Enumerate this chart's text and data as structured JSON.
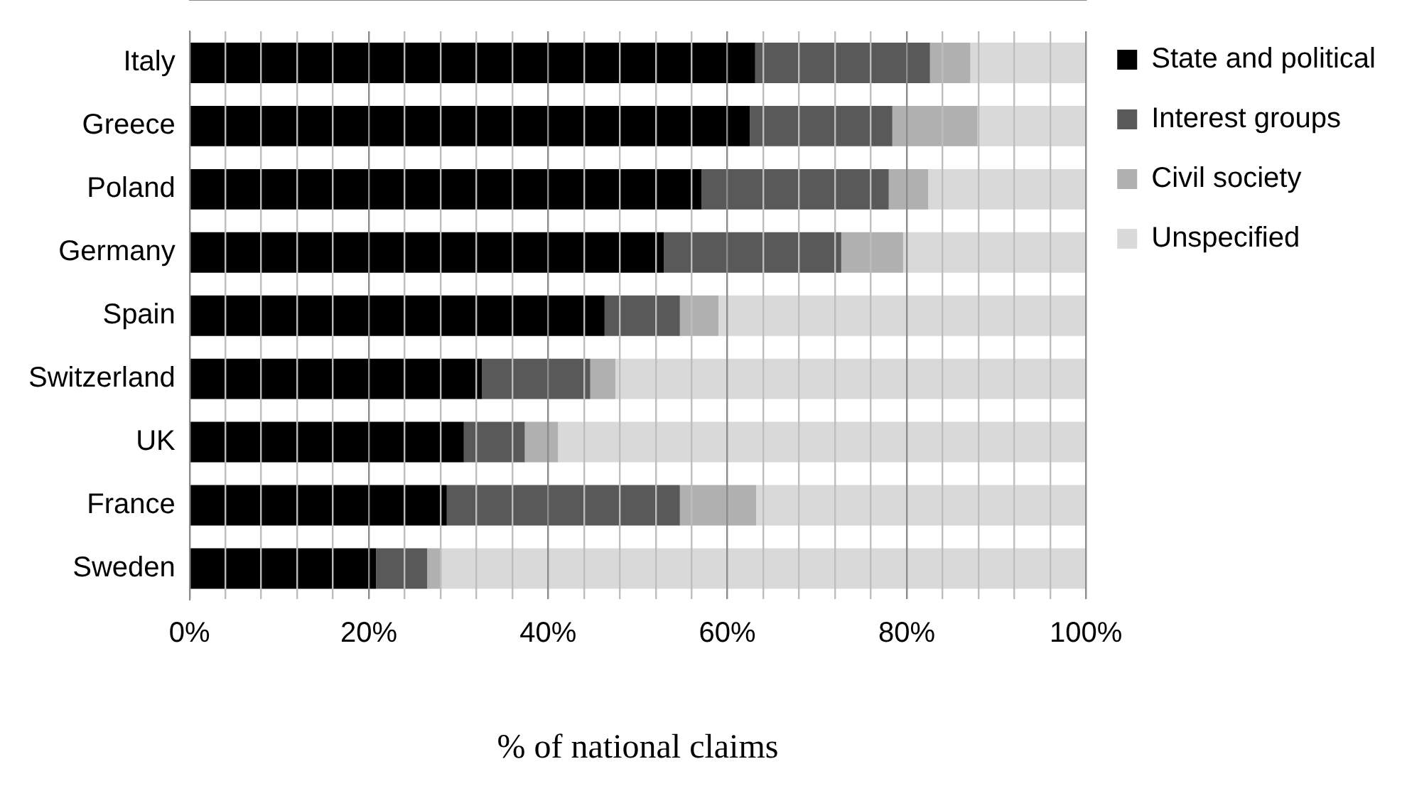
{
  "chart_data": {
    "type": "bar",
    "orientation": "horizontal",
    "stacked": true,
    "xlabel": "% of national claims",
    "categories": [
      "Italy",
      "Greece",
      "Poland",
      "Germany",
      "Spain",
      "Switzerland",
      "UK",
      "France",
      "Sweden"
    ],
    "series": [
      {
        "name": "State and political",
        "color": "#000000",
        "values": [
          63.1,
          62.5,
          57.1,
          52.9,
          46.3,
          32.6,
          30.6,
          28.7,
          20.8
        ]
      },
      {
        "name": "Interest groups",
        "color": "#595959",
        "values": [
          19.5,
          15.9,
          20.9,
          19.8,
          8.4,
          12.1,
          6.8,
          26.0,
          5.7
        ]
      },
      {
        "name": "Civil society",
        "color": "#b0b0b0",
        "values": [
          4.5,
          9.5,
          4.4,
          6.9,
          4.3,
          2.8,
          3.7,
          8.5,
          1.6
        ]
      },
      {
        "name": "Unspecified",
        "color": "#d9d9d9",
        "values": [
          12.9,
          12.1,
          17.6,
          20.4,
          41.0,
          52.5,
          58.9,
          36.8,
          71.9
        ]
      }
    ],
    "xlim": [
      0,
      100
    ],
    "xticks": [
      {
        "value": 0,
        "label": "0%"
      },
      {
        "value": 4,
        "label": null
      },
      {
        "value": 8,
        "label": null
      },
      {
        "value": 12,
        "label": null
      },
      {
        "value": 16,
        "label": null
      },
      {
        "value": 20,
        "label": "20%"
      },
      {
        "value": 24,
        "label": null
      },
      {
        "value": 28,
        "label": null
      },
      {
        "value": 32,
        "label": null
      },
      {
        "value": 36,
        "label": null
      },
      {
        "value": 40,
        "label": "40%"
      },
      {
        "value": 44,
        "label": null
      },
      {
        "value": 48,
        "label": null
      },
      {
        "value": 52,
        "label": null
      },
      {
        "value": 56,
        "label": null
      },
      {
        "value": 60,
        "label": "60%"
      },
      {
        "value": 64,
        "label": null
      },
      {
        "value": 68,
        "label": null
      },
      {
        "value": 72,
        "label": null
      },
      {
        "value": 76,
        "label": null
      },
      {
        "value": 80,
        "label": "80%"
      },
      {
        "value": 84,
        "label": null
      },
      {
        "value": 88,
        "label": null
      },
      {
        "value": 92,
        "label": null
      },
      {
        "value": 96,
        "label": null
      },
      {
        "value": 100,
        "label": "100%"
      }
    ],
    "grid": "x",
    "legend": "right"
  }
}
